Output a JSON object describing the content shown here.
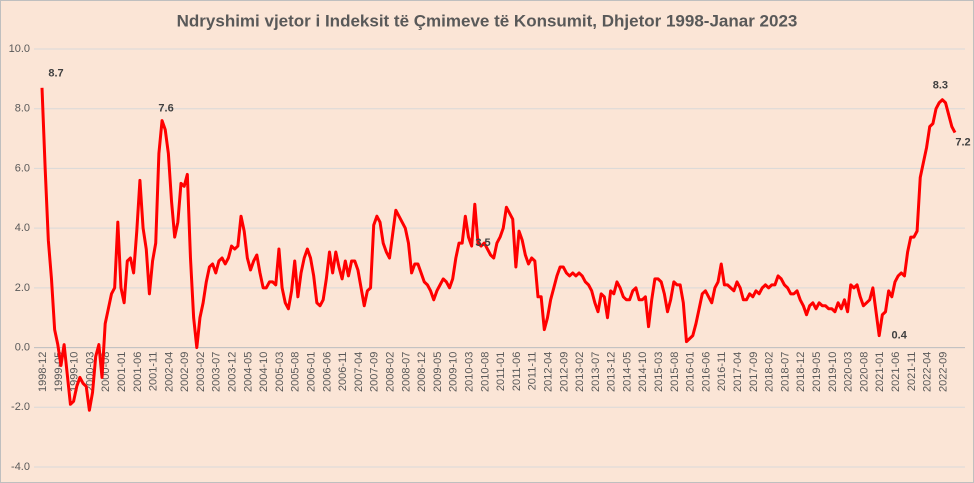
{
  "chart_data": {
    "type": "line",
    "title": "Ndryshimi vjetor i Indeksit të Çmimeve të Konsumit, Dhjetor 1998-Janar 2023",
    "categories": [
      "1998-12",
      null,
      null,
      null,
      null,
      "1999-05",
      null,
      null,
      null,
      null,
      "1999-10",
      null,
      null,
      null,
      null,
      "2000-03",
      null,
      null,
      null,
      null,
      "2000-08",
      null,
      null,
      null,
      null,
      "2001-01",
      null,
      null,
      null,
      null,
      "2001-06",
      null,
      null,
      null,
      null,
      "2001-11",
      null,
      null,
      null,
      null,
      "2002-04",
      null,
      null,
      null,
      null,
      "2002-09",
      null,
      null,
      null,
      null,
      "2003-02",
      null,
      null,
      null,
      null,
      "2003-07",
      null,
      null,
      null,
      null,
      "2003-12",
      null,
      null,
      null,
      null,
      "2004-05",
      null,
      null,
      null,
      null,
      "2004-10",
      null,
      null,
      null,
      null,
      "2005-03",
      null,
      null,
      null,
      null,
      "2005-08",
      null,
      null,
      null,
      null,
      "2006-01",
      null,
      null,
      null,
      null,
      "2006-06",
      null,
      null,
      null,
      null,
      "2006-11",
      null,
      null,
      null,
      null,
      "2007-04",
      null,
      null,
      null,
      null,
      "2007-09",
      null,
      null,
      null,
      null,
      "2008-02",
      null,
      null,
      null,
      null,
      "2008-07",
      null,
      null,
      null,
      null,
      "2008-12",
      null,
      null,
      null,
      null,
      "2009-05",
      null,
      null,
      null,
      null,
      "2009-10",
      null,
      null,
      null,
      null,
      "2010-03",
      null,
      null,
      null,
      null,
      "2010-08",
      null,
      null,
      null,
      null,
      "2011-01",
      null,
      null,
      null,
      null,
      "2011-06",
      null,
      null,
      null,
      null,
      "2011-11",
      null,
      null,
      null,
      null,
      "2012-04",
      null,
      null,
      null,
      null,
      "2012-09",
      null,
      null,
      null,
      null,
      "2013-02",
      null,
      null,
      null,
      null,
      "2013-07",
      null,
      null,
      null,
      null,
      "2013-12",
      null,
      null,
      null,
      null,
      "2014-05",
      null,
      null,
      null,
      null,
      "2014-10",
      null,
      null,
      null,
      null,
      "2015-03",
      null,
      null,
      null,
      null,
      "2015-08",
      null,
      null,
      null,
      null,
      "2016-01",
      null,
      null,
      null,
      null,
      "2016-06",
      null,
      null,
      null,
      null,
      "2016-11",
      null,
      null,
      null,
      null,
      "2017-04",
      null,
      null,
      null,
      null,
      "2017-09",
      null,
      null,
      null,
      null,
      "2018-02",
      null,
      null,
      null,
      null,
      "2018-07",
      null,
      null,
      null,
      null,
      "2018-12",
      null,
      null,
      null,
      null,
      "2019-05",
      null,
      null,
      null,
      null,
      "2019-10",
      null,
      null,
      null,
      null,
      "2020-03",
      null,
      null,
      null,
      null,
      "2020-08",
      null,
      null,
      null,
      null,
      "2021-01",
      null,
      null,
      null,
      null,
      "2021-06",
      null,
      null,
      null,
      null,
      "2021-11",
      null,
      null,
      null,
      null,
      "2022-04",
      null,
      null,
      null,
      null,
      "2022-09",
      null,
      null,
      null,
      null
    ],
    "values": [
      8.7,
      6.0,
      3.6,
      2.3,
      0.6,
      0.1,
      -0.6,
      0.1,
      -0.9,
      -1.9,
      -1.8,
      -1.3,
      -1.0,
      -1.2,
      -1.3,
      -2.1,
      -1.5,
      -0.3,
      0.1,
      -1.0,
      0.8,
      1.3,
      1.8,
      2.0,
      4.2,
      2.0,
      1.5,
      2.9,
      3.0,
      2.5,
      3.9,
      5.6,
      4.0,
      3.3,
      1.8,
      2.9,
      3.5,
      6.5,
      7.6,
      7.3,
      6.5,
      4.9,
      3.7,
      4.2,
      5.5,
      5.4,
      5.8,
      3.0,
      1.0,
      0.0,
      1.0,
      1.5,
      2.2,
      2.7,
      2.8,
      2.5,
      2.9,
      3.0,
      2.8,
      3.0,
      3.4,
      3.3,
      3.4,
      4.4,
      3.9,
      3.0,
      2.6,
      2.9,
      3.1,
      2.5,
      2.0,
      2.0,
      2.2,
      2.2,
      2.1,
      3.3,
      2.0,
      1.5,
      1.3,
      1.9,
      2.9,
      1.7,
      2.5,
      3.0,
      3.3,
      3.0,
      2.4,
      1.5,
      1.4,
      1.6,
      2.3,
      3.2,
      2.5,
      3.2,
      2.7,
      2.3,
      2.9,
      2.4,
      2.9,
      2.9,
      2.6,
      2.0,
      1.4,
      1.9,
      2.0,
      4.1,
      4.4,
      4.2,
      3.5,
      3.2,
      3.0,
      3.8,
      4.6,
      4.4,
      4.2,
      4.0,
      3.5,
      2.5,
      2.8,
      2.8,
      2.5,
      2.2,
      2.1,
      1.9,
      1.6,
      1.9,
      2.1,
      2.3,
      2.2,
      2.0,
      2.3,
      3.0,
      3.5,
      3.5,
      4.4,
      3.7,
      3.4,
      4.8,
      3.5,
      3.4,
      3.5,
      3.3,
      3.1,
      3.0,
      3.5,
      3.7,
      4.0,
      4.7,
      4.5,
      4.3,
      2.7,
      3.9,
      3.6,
      3.1,
      2.8,
      3.0,
      2.9,
      1.7,
      1.7,
      0.6,
      1.0,
      1.6,
      2.0,
      2.4,
      2.7,
      2.7,
      2.5,
      2.4,
      2.5,
      2.4,
      2.5,
      2.4,
      2.2,
      2.1,
      1.9,
      1.5,
      1.2,
      1.8,
      1.7,
      1.0,
      1.9,
      1.8,
      2.2,
      2.0,
      1.7,
      1.6,
      1.6,
      1.9,
      2.0,
      1.6,
      1.6,
      1.7,
      0.7,
      1.6,
      2.3,
      2.3,
      2.2,
      1.8,
      1.2,
      1.6,
      2.2,
      2.1,
      2.1,
      1.5,
      0.2,
      0.3,
      0.4,
      0.8,
      1.3,
      1.8,
      1.9,
      1.7,
      1.5,
      2.0,
      2.2,
      2.8,
      2.1,
      2.1,
      2.0,
      1.9,
      2.2,
      2.0,
      1.6,
      1.6,
      1.8,
      1.7,
      1.9,
      1.8,
      2.0,
      2.1,
      2.0,
      2.1,
      2.1,
      2.4,
      2.3,
      2.1,
      2.0,
      1.8,
      1.8,
      1.9,
      1.6,
      1.4,
      1.1,
      1.4,
      1.5,
      1.3,
      1.5,
      1.4,
      1.4,
      1.3,
      1.3,
      1.2,
      1.5,
      1.3,
      1.6,
      1.2,
      2.1,
      2.0,
      2.1,
      1.7,
      1.4,
      1.5,
      1.6,
      2.0,
      1.2,
      0.4,
      1.1,
      1.2,
      1.9,
      1.7,
      2.2,
      2.4,
      2.5,
      2.4,
      3.2,
      3.7,
      3.7,
      3.9,
      5.7,
      6.2,
      6.7,
      7.4,
      7.5,
      8.0,
      8.2,
      8.3,
      8.2,
      7.8,
      7.4,
      7.2
    ],
    "color": "#ff0000",
    "ylim": [
      -4,
      10
    ],
    "yticks": [
      {
        "value": -4,
        "label": "-4.0"
      },
      {
        "value": -2,
        "label": "-2.0"
      },
      {
        "value": 0,
        "label": "0.0"
      },
      {
        "value": 2,
        "label": "2.0"
      },
      {
        "value": 4,
        "label": "4.0"
      },
      {
        "value": 6,
        "label": "6.0"
      },
      {
        "value": 8,
        "label": "8.0"
      },
      {
        "value": 10,
        "label": "10.0"
      }
    ],
    "grid": true
  }
}
